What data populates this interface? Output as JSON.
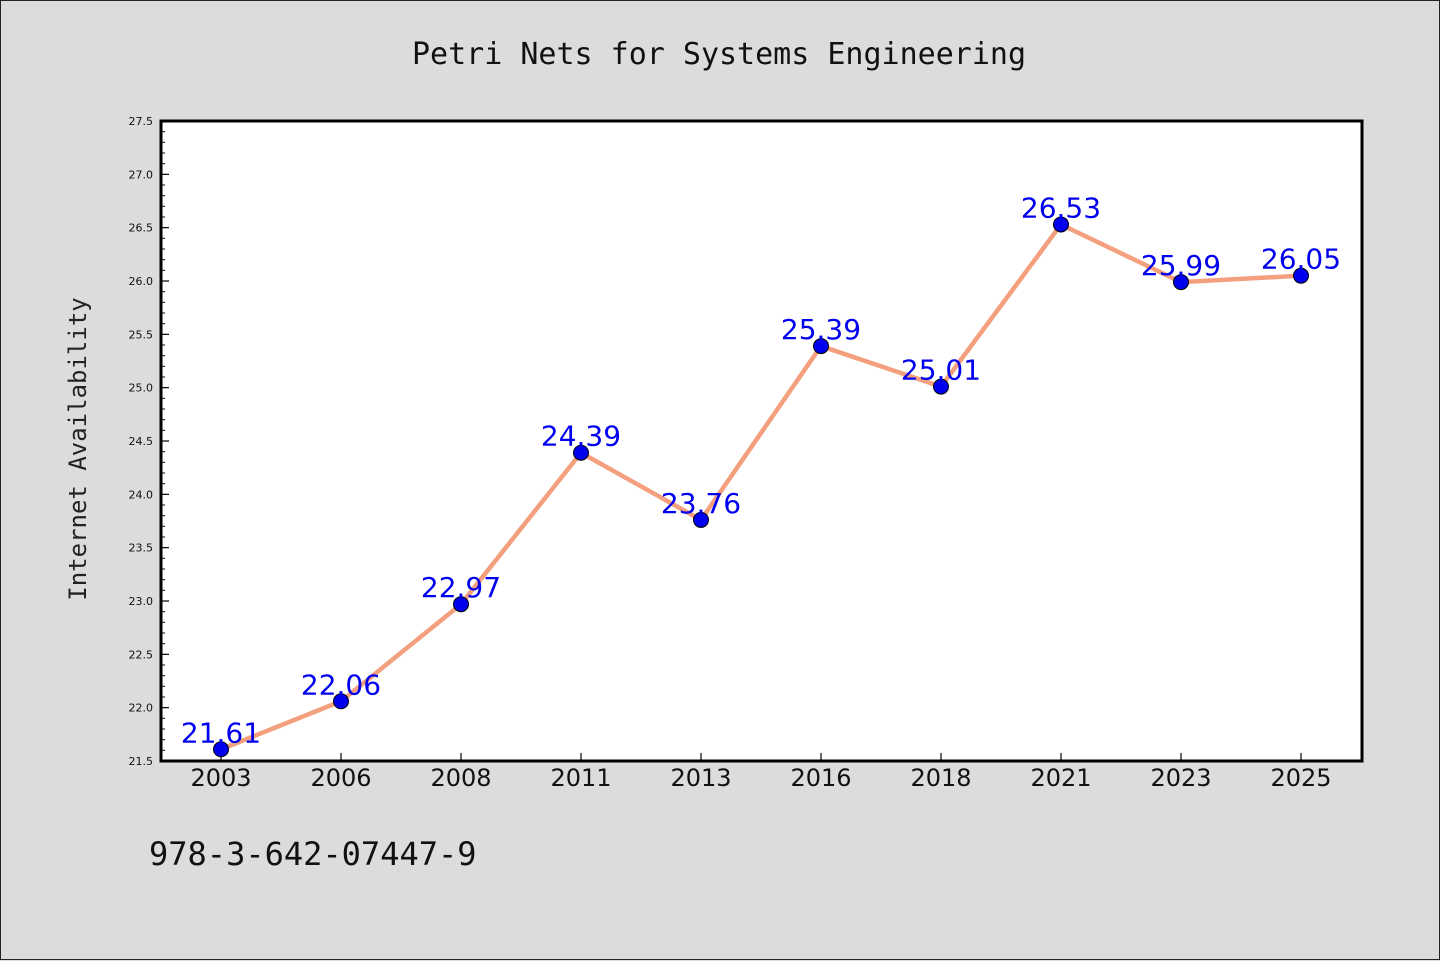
{
  "chart_data": {
    "type": "line",
    "title": "Petri Nets for Systems Engineering",
    "xlabel": "",
    "ylabel": "Internet Availability",
    "categories": [
      "2003",
      "2006",
      "2008",
      "2011",
      "2013",
      "2016",
      "2018",
      "2021",
      "2023",
      "2025"
    ],
    "series": [
      {
        "values": [
          21.61,
          22.06,
          22.97,
          24.39,
          23.76,
          25.39,
          25.01,
          26.53,
          25.99,
          26.05
        ],
        "line_color": "#f4a07e",
        "marker_color": "#0000ee",
        "label_color": "#0000ee"
      }
    ],
    "data_labels": [
      "21.61",
      "22.06",
      "22.97",
      "24.39",
      "23.76",
      "25.39",
      "25.01",
      "26.53",
      "25.99",
      "26.05"
    ],
    "ylim": [
      21.5,
      27.5
    ],
    "yticks": [
      "21.5",
      "22.0",
      "22.5",
      "23.0",
      "23.5",
      "24.0",
      "24.5",
      "25.0",
      "25.5",
      "26.0",
      "26.5",
      "27.0",
      "27.5"
    ],
    "grid": false,
    "legend": "none"
  },
  "footer": {
    "isbn": "978-3-642-07447-9"
  }
}
